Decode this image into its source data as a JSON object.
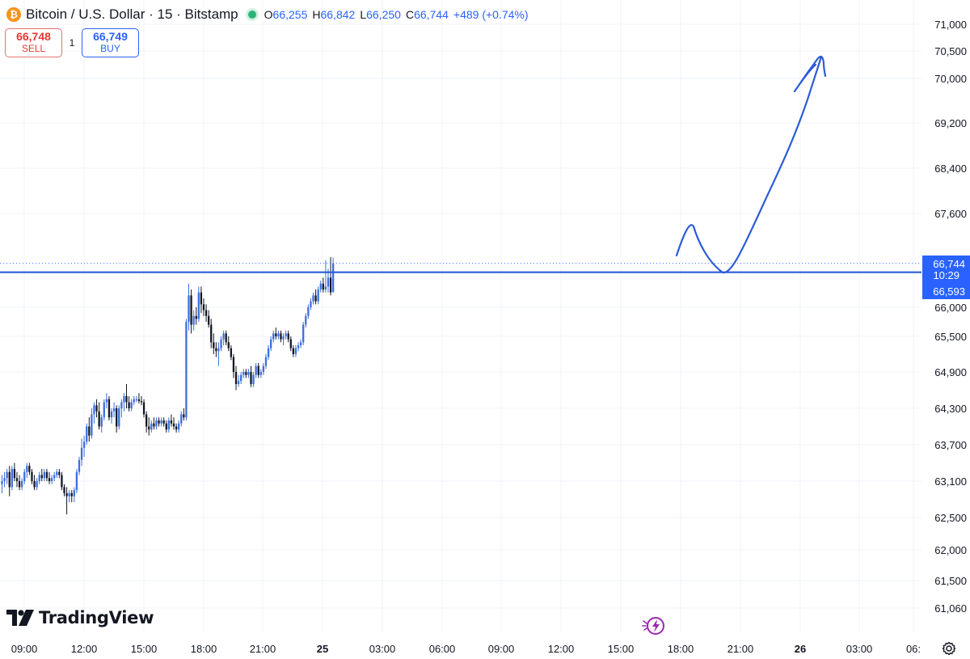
{
  "header": {
    "coin_icon": "bitcoin-icon",
    "coin_glyph": "₿",
    "symbol": "Bitcoin / U.S. Dollar · 15 · Bitstamp",
    "open_label": "O",
    "open_value": "66,255",
    "high_label": "H",
    "high_value": "66,842",
    "low_label": "L",
    "low_value": "66,250",
    "close_label": "C",
    "close_value": "66,744",
    "change": "+489 (+0.74%)"
  },
  "trade": {
    "sell_price": "66,748",
    "sell_label": "SELL",
    "quantity": "1",
    "buy_price": "66,749",
    "buy_label": "BUY"
  },
  "price_labels": {
    "last": "66,744",
    "countdown": "10:29",
    "line": "66,593"
  },
  "branding": {
    "name": "TradingView"
  },
  "icons": {
    "settings": "gear-icon",
    "bolt": "lightning-icon"
  },
  "colors": {
    "up": "#3d6ee0",
    "down": "#131722",
    "accent": "#2962ff",
    "drawing": "#2b5bd7",
    "grid": "#f0f3fa"
  },
  "chart_data": {
    "type": "candlestick",
    "interval": "15",
    "x_tick_labels": [
      "09:00",
      "12:00",
      "15:00",
      "18:00",
      "21:00",
      "25",
      "03:00",
      "06:00",
      "09:00",
      "12:00",
      "15:00",
      "18:00",
      "21:00",
      "26",
      "03:00",
      "06:"
    ],
    "y_tick_labels": [
      "71,000",
      "70,500",
      "70,000",
      "69,200",
      "68,400",
      "67,600",
      "66,000",
      "65,500",
      "64,900",
      "64,300",
      "63,700",
      "63,100",
      "62,500",
      "62,000",
      "61,500",
      "61,060"
    ],
    "y_range": [
      60700,
      71100
    ],
    "y_scale": "log",
    "last_price": 66744,
    "horizontal_line": 66593,
    "candles": [
      {
        "o": 63050,
        "h": 63200,
        "l": 62900,
        "c": 63100
      },
      {
        "o": 63100,
        "h": 63250,
        "l": 63000,
        "c": 63150
      },
      {
        "o": 63150,
        "h": 63300,
        "l": 63050,
        "c": 63250
      },
      {
        "o": 63250,
        "h": 63350,
        "l": 62850,
        "c": 63000
      },
      {
        "o": 63000,
        "h": 63350,
        "l": 62950,
        "c": 63300
      },
      {
        "o": 63300,
        "h": 63400,
        "l": 63100,
        "c": 63150
      },
      {
        "o": 63150,
        "h": 63250,
        "l": 63000,
        "c": 63100
      },
      {
        "o": 63100,
        "h": 63200,
        "l": 62950,
        "c": 63000
      },
      {
        "o": 63000,
        "h": 63150,
        "l": 62950,
        "c": 63100
      },
      {
        "o": 63100,
        "h": 63300,
        "l": 63050,
        "c": 63250
      },
      {
        "o": 63250,
        "h": 63400,
        "l": 63150,
        "c": 63350
      },
      {
        "o": 63350,
        "h": 63400,
        "l": 63200,
        "c": 63250
      },
      {
        "o": 63250,
        "h": 63300,
        "l": 63050,
        "c": 63100
      },
      {
        "o": 63100,
        "h": 63200,
        "l": 62950,
        "c": 63000
      },
      {
        "o": 63000,
        "h": 63150,
        "l": 62950,
        "c": 63100
      },
      {
        "o": 63100,
        "h": 63250,
        "l": 63050,
        "c": 63200
      },
      {
        "o": 63200,
        "h": 63300,
        "l": 63100,
        "c": 63150
      },
      {
        "o": 63150,
        "h": 63300,
        "l": 63100,
        "c": 63250
      },
      {
        "o": 63250,
        "h": 63300,
        "l": 63100,
        "c": 63150
      },
      {
        "o": 63150,
        "h": 63250,
        "l": 63050,
        "c": 63100
      },
      {
        "o": 63100,
        "h": 63200,
        "l": 63050,
        "c": 63150
      },
      {
        "o": 63150,
        "h": 63250,
        "l": 63100,
        "c": 63200
      },
      {
        "o": 63200,
        "h": 63300,
        "l": 63150,
        "c": 63250
      },
      {
        "o": 63250,
        "h": 63300,
        "l": 63150,
        "c": 63200
      },
      {
        "o": 63200,
        "h": 63250,
        "l": 62950,
        "c": 63000
      },
      {
        "o": 63000,
        "h": 63050,
        "l": 62850,
        "c": 62900
      },
      {
        "o": 62900,
        "h": 63000,
        "l": 62550,
        "c": 62850
      },
      {
        "o": 62850,
        "h": 62950,
        "l": 62750,
        "c": 62900
      },
      {
        "o": 62900,
        "h": 62950,
        "l": 62750,
        "c": 62850
      },
      {
        "o": 62850,
        "h": 63000,
        "l": 62750,
        "c": 62950
      },
      {
        "o": 62950,
        "h": 63300,
        "l": 62900,
        "c": 63250
      },
      {
        "o": 63250,
        "h": 63500,
        "l": 63200,
        "c": 63450
      },
      {
        "o": 63450,
        "h": 63800,
        "l": 63350,
        "c": 63650
      },
      {
        "o": 63650,
        "h": 63850,
        "l": 63500,
        "c": 63750
      },
      {
        "o": 63750,
        "h": 64050,
        "l": 63700,
        "c": 64000
      },
      {
        "o": 64000,
        "h": 64150,
        "l": 63750,
        "c": 63850
      },
      {
        "o": 63850,
        "h": 64300,
        "l": 63800,
        "c": 64200
      },
      {
        "o": 64200,
        "h": 64400,
        "l": 64050,
        "c": 64350
      },
      {
        "o": 64350,
        "h": 64450,
        "l": 64150,
        "c": 64250
      },
      {
        "o": 64250,
        "h": 64400,
        "l": 63950,
        "c": 64000
      },
      {
        "o": 64000,
        "h": 64200,
        "l": 63900,
        "c": 64150
      },
      {
        "o": 64150,
        "h": 64450,
        "l": 64100,
        "c": 64400
      },
      {
        "o": 64400,
        "h": 64550,
        "l": 64300,
        "c": 64450
      },
      {
        "o": 64450,
        "h": 64500,
        "l": 64100,
        "c": 64150
      },
      {
        "o": 64150,
        "h": 64300,
        "l": 64050,
        "c": 64250
      },
      {
        "o": 64250,
        "h": 64400,
        "l": 64150,
        "c": 64300
      },
      {
        "o": 64300,
        "h": 64350,
        "l": 63900,
        "c": 64000
      },
      {
        "o": 64000,
        "h": 64350,
        "l": 63950,
        "c": 64300
      },
      {
        "o": 64300,
        "h": 64450,
        "l": 64150,
        "c": 64400
      },
      {
        "o": 64400,
        "h": 64550,
        "l": 64250,
        "c": 64500
      },
      {
        "o": 64500,
        "h": 64700,
        "l": 64300,
        "c": 64400
      },
      {
        "o": 64400,
        "h": 64500,
        "l": 64250,
        "c": 64300
      },
      {
        "o": 64300,
        "h": 64450,
        "l": 64250,
        "c": 64400
      },
      {
        "o": 64400,
        "h": 64500,
        "l": 64350,
        "c": 64450
      },
      {
        "o": 64450,
        "h": 64500,
        "l": 64400,
        "c": 64450
      },
      {
        "o": 64450,
        "h": 64550,
        "l": 64380,
        "c": 64420
      },
      {
        "o": 64420,
        "h": 64500,
        "l": 64350,
        "c": 64400
      },
      {
        "o": 64400,
        "h": 64450,
        "l": 64150,
        "c": 64200
      },
      {
        "o": 64200,
        "h": 64250,
        "l": 63900,
        "c": 64000
      },
      {
        "o": 64000,
        "h": 64150,
        "l": 63850,
        "c": 63950
      },
      {
        "o": 63950,
        "h": 64100,
        "l": 63900,
        "c": 64050
      },
      {
        "o": 64050,
        "h": 64150,
        "l": 63950,
        "c": 64000
      },
      {
        "o": 64000,
        "h": 64150,
        "l": 63950,
        "c": 64100
      },
      {
        "o": 64100,
        "h": 64150,
        "l": 64000,
        "c": 64050
      },
      {
        "o": 64050,
        "h": 64150,
        "l": 64000,
        "c": 64100
      },
      {
        "o": 64100,
        "h": 64150,
        "l": 64000,
        "c": 64050
      },
      {
        "o": 64050,
        "h": 64100,
        "l": 63900,
        "c": 63950
      },
      {
        "o": 63950,
        "h": 64150,
        "l": 63900,
        "c": 64100
      },
      {
        "o": 64100,
        "h": 64200,
        "l": 64000,
        "c": 64050
      },
      {
        "o": 64050,
        "h": 64150,
        "l": 63950,
        "c": 64000
      },
      {
        "o": 64000,
        "h": 64050,
        "l": 63900,
        "c": 63950
      },
      {
        "o": 63950,
        "h": 64100,
        "l": 63900,
        "c": 64050
      },
      {
        "o": 64050,
        "h": 64250,
        "l": 64000,
        "c": 64200
      },
      {
        "o": 64200,
        "h": 64300,
        "l": 64100,
        "c": 64150
      },
      {
        "o": 64150,
        "h": 65800,
        "l": 64100,
        "c": 65750
      },
      {
        "o": 65750,
        "h": 66400,
        "l": 65600,
        "c": 66200
      },
      {
        "o": 66200,
        "h": 66300,
        "l": 65550,
        "c": 65700
      },
      {
        "o": 65700,
        "h": 65950,
        "l": 65600,
        "c": 65850
      },
      {
        "o": 65850,
        "h": 66000,
        "l": 65700,
        "c": 65800
      },
      {
        "o": 65800,
        "h": 66350,
        "l": 65750,
        "c": 66250
      },
      {
        "o": 66250,
        "h": 66350,
        "l": 65900,
        "c": 66050
      },
      {
        "o": 66050,
        "h": 66150,
        "l": 65850,
        "c": 65950
      },
      {
        "o": 65950,
        "h": 66050,
        "l": 65750,
        "c": 65850
      },
      {
        "o": 65850,
        "h": 65950,
        "l": 65650,
        "c": 65700
      },
      {
        "o": 65700,
        "h": 65800,
        "l": 65300,
        "c": 65400
      },
      {
        "o": 65400,
        "h": 65550,
        "l": 65200,
        "c": 65300
      },
      {
        "o": 65300,
        "h": 65400,
        "l": 65150,
        "c": 65250
      },
      {
        "o": 65250,
        "h": 65400,
        "l": 65000,
        "c": 65300
      },
      {
        "o": 65300,
        "h": 65500,
        "l": 65250,
        "c": 65450
      },
      {
        "o": 65450,
        "h": 65600,
        "l": 65350,
        "c": 65550
      },
      {
        "o": 65550,
        "h": 65600,
        "l": 65350,
        "c": 65400
      },
      {
        "o": 65400,
        "h": 65500,
        "l": 65250,
        "c": 65300
      },
      {
        "o": 65300,
        "h": 65350,
        "l": 65100,
        "c": 65150
      },
      {
        "o": 65150,
        "h": 65200,
        "l": 64800,
        "c": 64900
      },
      {
        "o": 64900,
        "h": 65000,
        "l": 64600,
        "c": 64700
      },
      {
        "o": 64700,
        "h": 64850,
        "l": 64650,
        "c": 64750
      },
      {
        "o": 64750,
        "h": 64900,
        "l": 64700,
        "c": 64850
      },
      {
        "o": 64850,
        "h": 64950,
        "l": 64800,
        "c": 64900
      },
      {
        "o": 64900,
        "h": 64950,
        "l": 64800,
        "c": 64850
      },
      {
        "o": 64850,
        "h": 64950,
        "l": 64800,
        "c": 64900
      },
      {
        "o": 64900,
        "h": 65000,
        "l": 64650,
        "c": 64700
      },
      {
        "o": 64700,
        "h": 64900,
        "l": 64650,
        "c": 64850
      },
      {
        "o": 64850,
        "h": 65050,
        "l": 64800,
        "c": 65000
      },
      {
        "o": 65000,
        "h": 65050,
        "l": 64800,
        "c": 64850
      },
      {
        "o": 64850,
        "h": 64950,
        "l": 64800,
        "c": 64900
      },
      {
        "o": 64900,
        "h": 65050,
        "l": 64850,
        "c": 65000
      },
      {
        "o": 65000,
        "h": 65200,
        "l": 64950,
        "c": 65150
      },
      {
        "o": 65150,
        "h": 65350,
        "l": 65100,
        "c": 65300
      },
      {
        "o": 65300,
        "h": 65500,
        "l": 65250,
        "c": 65450
      },
      {
        "o": 65450,
        "h": 65600,
        "l": 65400,
        "c": 65550
      },
      {
        "o": 65550,
        "h": 65650,
        "l": 65450,
        "c": 65500
      },
      {
        "o": 65500,
        "h": 65600,
        "l": 65450,
        "c": 65550
      },
      {
        "o": 65550,
        "h": 65600,
        "l": 65400,
        "c": 65450
      },
      {
        "o": 65450,
        "h": 65550,
        "l": 65350,
        "c": 65500
      },
      {
        "o": 65500,
        "h": 65600,
        "l": 65450,
        "c": 65550
      },
      {
        "o": 65550,
        "h": 65600,
        "l": 65400,
        "c": 65450
      },
      {
        "o": 65450,
        "h": 65500,
        "l": 65250,
        "c": 65300
      },
      {
        "o": 65300,
        "h": 65350,
        "l": 65150,
        "c": 65200
      },
      {
        "o": 65200,
        "h": 65350,
        "l": 65150,
        "c": 65300
      },
      {
        "o": 65300,
        "h": 65400,
        "l": 65250,
        "c": 65350
      },
      {
        "o": 65350,
        "h": 65450,
        "l": 65300,
        "c": 65400
      },
      {
        "o": 65400,
        "h": 65750,
        "l": 65350,
        "c": 65700
      },
      {
        "o": 65700,
        "h": 65900,
        "l": 65650,
        "c": 65850
      },
      {
        "o": 65850,
        "h": 66050,
        "l": 65800,
        "c": 66000
      },
      {
        "o": 66000,
        "h": 66150,
        "l": 65950,
        "c": 66100
      },
      {
        "o": 66100,
        "h": 66250,
        "l": 66050,
        "c": 66200
      },
      {
        "o": 66200,
        "h": 66300,
        "l": 66050,
        "c": 66100
      },
      {
        "o": 66100,
        "h": 66350,
        "l": 66050,
        "c": 66300
      },
      {
        "o": 66300,
        "h": 66450,
        "l": 66250,
        "c": 66400
      },
      {
        "o": 66400,
        "h": 66500,
        "l": 66250,
        "c": 66300
      },
      {
        "o": 66300,
        "h": 66800,
        "l": 66250,
        "c": 66350
      },
      {
        "o": 66350,
        "h": 66650,
        "l": 66250,
        "c": 66500
      },
      {
        "o": 66500,
        "h": 66850,
        "l": 66200,
        "c": 66250
      },
      {
        "o": 66255,
        "h": 66842,
        "l": 66250,
        "c": 66744
      }
    ]
  }
}
